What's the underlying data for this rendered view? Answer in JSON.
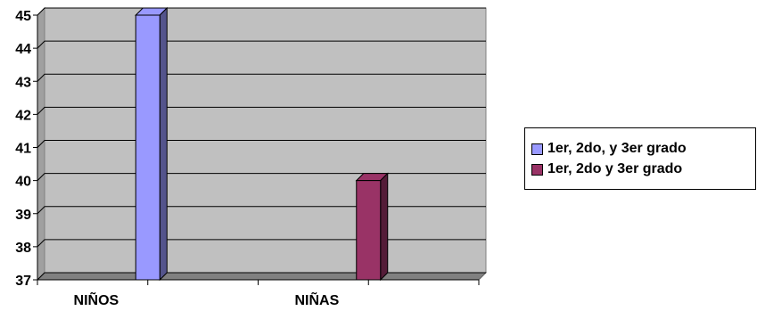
{
  "chart_data": {
    "type": "bar",
    "categories": [
      "NIÑOS",
      "NIÑAS"
    ],
    "series": [
      {
        "name": "1er, 2do, y 3er grado",
        "color": "#9999ff",
        "values": [
          45,
          null
        ]
      },
      {
        "name": "1er, 2do y 3er grado",
        "color": "#993366",
        "values": [
          null,
          40
        ]
      }
    ],
    "ylim": [
      37,
      45
    ],
    "yticks": [
      37,
      38,
      39,
      40,
      41,
      42,
      43,
      44,
      45
    ],
    "grid": true,
    "plot_background": "#c0c0c0",
    "legend_position": "right",
    "title": "",
    "xlabel": "",
    "ylabel": ""
  }
}
